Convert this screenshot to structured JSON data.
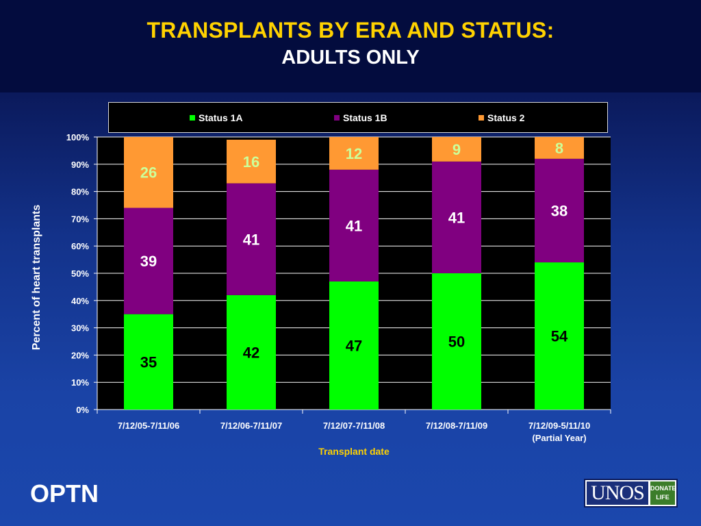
{
  "slide": {
    "title_line1": "TRANSPLANTS BY ERA AND STATUS:",
    "title_line2": "ADULTS ONLY",
    "footer_left": "OPTN",
    "logo_main": "UNOS",
    "logo_side_line1": "DONATE",
    "logo_side_line2": "LIFE"
  },
  "chart_data": {
    "type": "bar",
    "stacked": true,
    "percent_stacked": true,
    "categories": [
      "7/12/05-7/11/06",
      "7/12/06-7/11/07",
      "7/12/07-7/11/08",
      "7/12/08-7/11/09",
      "7/12/09-5/11/10\n(Partial Year)"
    ],
    "series": [
      {
        "name": "Status 1A",
        "color": "#00ff00",
        "label_color": "#000000",
        "values": [
          35,
          42,
          47,
          50,
          54
        ]
      },
      {
        "name": "Status 1B",
        "color": "#800080",
        "label_color": "#ffffff",
        "values": [
          39,
          41,
          41,
          41,
          38
        ]
      },
      {
        "name": "Status 2",
        "color": "#ff9933",
        "label_color": "#ccff99",
        "values": [
          26,
          16,
          12,
          9,
          8
        ]
      }
    ],
    "xlabel": "Transplant date",
    "ylabel": "Percent of heart transplants",
    "ylim": [
      0,
      100
    ],
    "yticks": [
      "0%",
      "10%",
      "20%",
      "30%",
      "40%",
      "50%",
      "60%",
      "70%",
      "80%",
      "90%",
      "100%"
    ],
    "grid": true,
    "legend": "top"
  }
}
